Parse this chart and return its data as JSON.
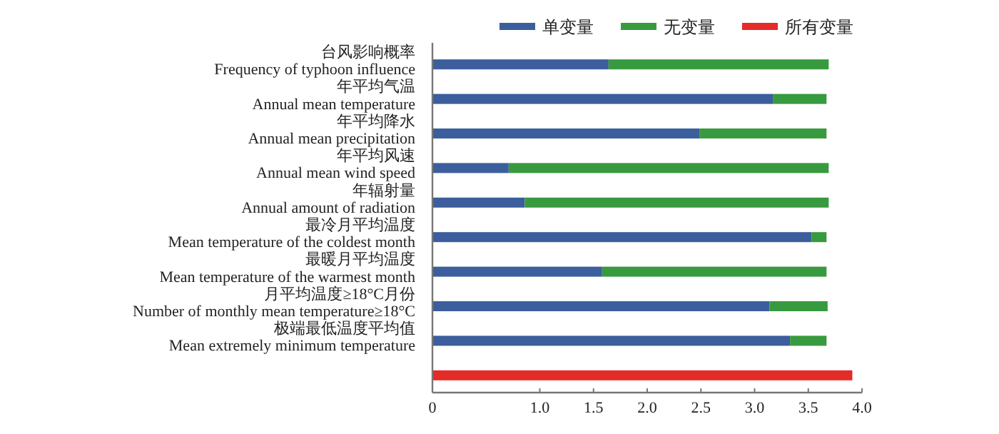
{
  "chart_data": {
    "type": "bar",
    "orientation": "horizontal",
    "stacked": true,
    "categories": [
      "台风影响概率\nFrequency of typhoon influence",
      "年平均气温\nAnnual mean temperature",
      "年平均降水\nAnnual mean precipitation",
      "年平均风速\nAnnual mean wind speed",
      "年辐射量\nAnnual amount of radiation",
      "最冷月平均温度\nMean temperature of the coldest month",
      "最暖月平均温度\nMean temperature of the warmest month",
      "月平均温度≥18°C月份\nNumber of monthly mean temperature≥18°C",
      "极端最低温度平均值\nMean extremely minimum temperature",
      null
    ],
    "series": [
      {
        "name": "单变量",
        "color": "#3c5e9c",
        "values": [
          1.64,
          3.17,
          2.49,
          0.71,
          0.86,
          3.53,
          1.58,
          3.14,
          3.33,
          null
        ]
      },
      {
        "name": "无变量",
        "color": "#389a3e",
        "values": [
          2.05,
          0.5,
          1.18,
          2.98,
          2.83,
          0.14,
          2.09,
          0.54,
          0.34,
          null
        ]
      },
      {
        "name": "所有变量",
        "color": "#e52b28",
        "values": [
          null,
          null,
          null,
          null,
          null,
          null,
          null,
          null,
          null,
          3.91
        ]
      }
    ],
    "xlim": [
      0,
      4.0
    ],
    "xticks": [
      0,
      {
        "value": 1.0,
        "label": "1.0"
      },
      {
        "value": 1.5,
        "label": "1.5"
      },
      {
        "value": 2.0,
        "label": "2.0"
      },
      {
        "value": 2.5,
        "label": "2.5"
      },
      {
        "value": 3.0,
        "label": "3.0"
      },
      {
        "value": 3.5,
        "label": "3.5"
      },
      {
        "value": 4.0,
        "label": "4.0"
      }
    ],
    "grid": false,
    "legend": "top"
  }
}
